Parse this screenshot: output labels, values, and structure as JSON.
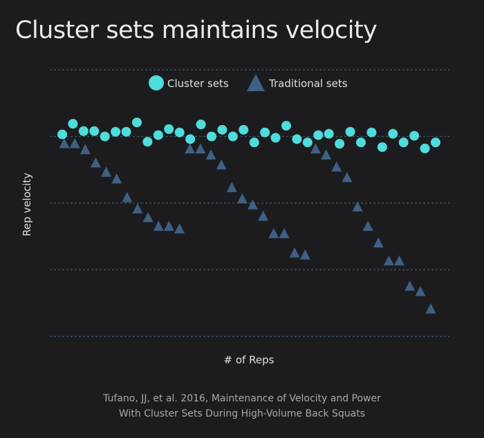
{
  "chart_data": {
    "type": "scatter",
    "title": "Cluster sets maintains velocity",
    "xlabel": "# of Reps",
    "ylabel": "Rep velocity",
    "x_tick_labels": [],
    "y_tick_labels": [],
    "grid": true,
    "ylim": [
      0,
      4
    ],
    "xlim": [
      1,
      36
    ],
    "legend_position": "top-center",
    "x": [
      1,
      2,
      3,
      4,
      5,
      6,
      7,
      8,
      9,
      10,
      11,
      12,
      13,
      14,
      15,
      16,
      17,
      18,
      19,
      20,
      21,
      22,
      23,
      24,
      25,
      26,
      27,
      28,
      29,
      30,
      31,
      32,
      33,
      34,
      35,
      36
    ],
    "series": [
      {
        "name": "Cluster sets",
        "marker": "circle",
        "color": "#4fdcdc",
        "values": [
          3.03,
          3.19,
          3.08,
          3.08,
          3.0,
          3.07,
          3.07,
          3.21,
          2.92,
          3.02,
          3.11,
          3.06,
          2.96,
          3.18,
          3.0,
          3.1,
          3.0,
          3.1,
          2.91,
          3.06,
          2.98,
          3.16,
          2.96,
          2.91,
          3.02,
          3.04,
          2.89,
          3.07,
          2.91,
          3.06,
          2.84,
          3.04,
          2.91,
          3.01,
          2.82,
          2.91
        ]
      },
      {
        "name": "Traditional sets",
        "marker": "triangle",
        "color": "#3f5f85",
        "values": [
          2.89,
          2.89,
          2.8,
          2.6,
          2.46,
          2.36,
          2.08,
          1.91,
          1.78,
          1.65,
          1.65,
          1.61,
          2.81,
          2.81,
          2.72,
          2.57,
          2.23,
          2.06,
          1.97,
          1.8,
          1.54,
          1.54,
          1.25,
          1.22,
          2.81,
          2.72,
          2.54,
          2.38,
          1.94,
          1.65,
          1.4,
          1.13,
          1.13,
          0.75,
          0.67,
          0.41
        ]
      }
    ],
    "gridline_values": [
      0,
      1,
      2,
      3,
      4
    ],
    "source": [
      "Tufano, JJ, et al. 2016, Maintenance of Velocity and Power",
      "With Cluster Sets During High-Volume Back Squats"
    ]
  },
  "colors": {
    "background": "#1c1c1e",
    "grid": "#3e5675",
    "text": "#e6e6e6",
    "source_text": "#a9a9a9"
  }
}
